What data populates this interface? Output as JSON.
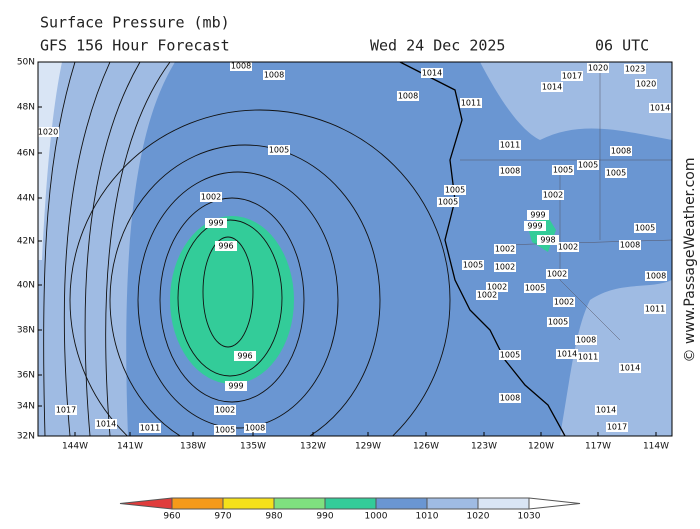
{
  "header": {
    "title": "Surface Pressure (mb)",
    "subtitle": "GFS 156 Hour Forecast",
    "date": "Wed 24 Dec 2025",
    "time": "06 UTC"
  },
  "map": {
    "lat_labels": [
      "50N",
      "48N",
      "46N",
      "44N",
      "42N",
      "40N",
      "38N",
      "36N",
      "34N",
      "32N"
    ],
    "lon_labels": [
      "144W",
      "141W",
      "138W",
      "135W",
      "132W",
      "129W",
      "126W",
      "123W",
      "120W",
      "117W",
      "114W"
    ],
    "isobar_labels": [
      "1008",
      "1008",
      "1008",
      "1005",
      "1002",
      "999",
      "996",
      "996",
      "999",
      "1002",
      "1005",
      "1008",
      "1020",
      "1017",
      "1014",
      "1011",
      "1014",
      "1011",
      "1011",
      "1008",
      "1005",
      "1005",
      "1002",
      "1002",
      "1005",
      "1002",
      "1002",
      "1005",
      "1002",
      "1005",
      "1005",
      "1008",
      "999",
      "999",
      "998",
      "1002",
      "1002",
      "1002",
      "1005",
      "1005",
      "1005",
      "1008",
      "1008",
      "1014",
      "1011",
      "1014",
      "1017",
      "1014",
      "1011",
      "1008",
      "1008",
      "1005",
      "1014",
      "1017",
      "1020",
      "1023",
      "1020",
      "1014"
    ]
  },
  "colorbar": {
    "ticks": [
      960,
      970,
      980,
      990,
      1000,
      1010,
      1020,
      1030
    ],
    "colors": [
      "#e03c3c",
      "#f59a1a",
      "#f5e11a",
      "#7fe07f",
      "#33cc99",
      "#6a96d2",
      "#9fbbe3",
      "#d9e5f5",
      "#ffffff"
    ]
  },
  "credit": "© www.PassageWeather.com"
}
